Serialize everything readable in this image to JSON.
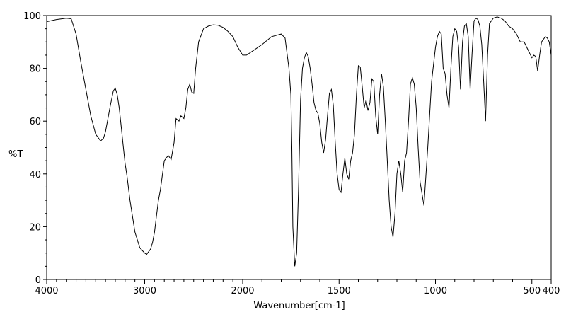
{
  "chart_data": {
    "type": "line",
    "title": "",
    "xlabel": "Wavenumber[cm-1]",
    "ylabel": "%T",
    "xlim": [
      4000,
      400
    ],
    "ylim": [
      0,
      100
    ],
    "x_ticks": [
      4000,
      3000,
      2000,
      1500,
      1000,
      500,
      400
    ],
    "x_tick_labels": [
      "4000",
      "3000",
      "2000",
      "1500",
      "1000",
      "500",
      "400"
    ],
    "y_ticks": [
      0,
      20,
      40,
      60,
      80,
      100
    ],
    "y_tick_labels": [
      "0",
      "20",
      "40",
      "60",
      "80",
      "100"
    ],
    "x_scale": "piecewise-linear",
    "x_scale_breakpoints": [
      4000,
      2000,
      400
    ],
    "grid": false,
    "line_color": "#000000",
    "series": [
      {
        "x": [
          4000,
          3900,
          3800,
          3750,
          3700,
          3650,
          3600,
          3550,
          3500,
          3450,
          3420,
          3400,
          3380,
          3350,
          3320,
          3300,
          3280,
          3260,
          3240,
          3220,
          3200,
          3180,
          3150,
          3100,
          3050,
          3000,
          2980,
          2960,
          2940,
          2920,
          2900,
          2880,
          2860,
          2840,
          2800,
          2760,
          2730,
          2700,
          2680,
          2650,
          2630,
          2600,
          2580,
          2560,
          2540,
          2520,
          2500,
          2480,
          2450,
          2400,
          2350,
          2300,
          2250,
          2200,
          2150,
          2100,
          2050,
          2000,
          1980,
          1950,
          1900,
          1850,
          1800,
          1780,
          1760,
          1750,
          1745,
          1740,
          1730,
          1720,
          1710,
          1700,
          1690,
          1680,
          1670,
          1660,
          1650,
          1640,
          1630,
          1620,
          1610,
          1600,
          1590,
          1580,
          1570,
          1560,
          1550,
          1540,
          1530,
          1520,
          1510,
          1500,
          1490,
          1480,
          1470,
          1460,
          1450,
          1440,
          1430,
          1420,
          1410,
          1400,
          1390,
          1380,
          1370,
          1360,
          1350,
          1340,
          1330,
          1320,
          1310,
          1300,
          1290,
          1280,
          1270,
          1260,
          1250,
          1240,
          1230,
          1220,
          1210,
          1200,
          1190,
          1180,
          1170,
          1160,
          1150,
          1140,
          1130,
          1120,
          1110,
          1100,
          1090,
          1080,
          1060,
          1040,
          1020,
          1000,
          990,
          980,
          970,
          960,
          950,
          940,
          930,
          920,
          910,
          900,
          890,
          880,
          870,
          860,
          850,
          840,
          830,
          820,
          810,
          800,
          790,
          780,
          770,
          760,
          750,
          740,
          730,
          720,
          700,
          680,
          660,
          640,
          620,
          600,
          580,
          560,
          540,
          520,
          500,
          490,
          480,
          470,
          460,
          450,
          440,
          430,
          420,
          410,
          400
        ],
        "y": [
          97.7,
          98.5,
          99,
          98.8,
          93,
          82,
          72,
          62,
          55,
          52.5,
          53.5,
          56,
          60,
          66,
          71.5,
          72.5,
          70,
          65,
          58,
          51,
          44,
          39,
          30,
          18,
          12,
          10,
          9.5,
          10.5,
          11.5,
          14,
          18,
          24,
          30,
          34,
          45,
          47,
          45.5,
          52,
          61,
          60,
          62,
          61,
          65,
          72,
          74,
          71,
          70.5,
          80,
          90,
          95,
          96,
          96.5,
          96.3,
          95.5,
          94,
          92,
          88,
          85,
          85,
          86.5,
          89,
          92,
          93,
          91.5,
          80,
          70,
          50,
          20,
          5,
          10,
          35,
          68,
          80,
          84,
          86,
          84.5,
          80,
          74,
          67,
          64,
          63,
          59,
          52,
          48,
          53,
          62,
          70.5,
          72,
          66,
          52,
          40,
          34,
          33,
          40,
          46,
          40,
          38,
          45,
          48,
          55,
          70,
          81,
          80.5,
          73,
          65,
          68,
          64,
          67,
          76,
          75,
          62,
          55,
          70,
          78,
          73,
          60,
          45,
          30,
          20,
          16,
          25,
          40,
          45,
          40,
          33,
          45,
          48,
          60,
          74,
          76.5,
          74,
          65,
          50,
          37,
          28,
          50,
          75,
          88,
          92,
          94,
          93,
          80,
          78,
          70,
          65,
          80,
          92,
          95,
          94,
          88,
          72,
          90,
          96,
          97,
          92,
          72,
          86,
          98,
          99,
          98.5,
          96,
          89,
          75,
          60,
          85,
          97,
          99,
          99.5,
          99,
          98,
          96,
          95,
          93,
          90,
          90,
          87,
          84,
          85,
          84.5,
          79,
          85,
          90,
          91,
          92,
          91.5,
          90,
          85
        ]
      }
    ]
  }
}
